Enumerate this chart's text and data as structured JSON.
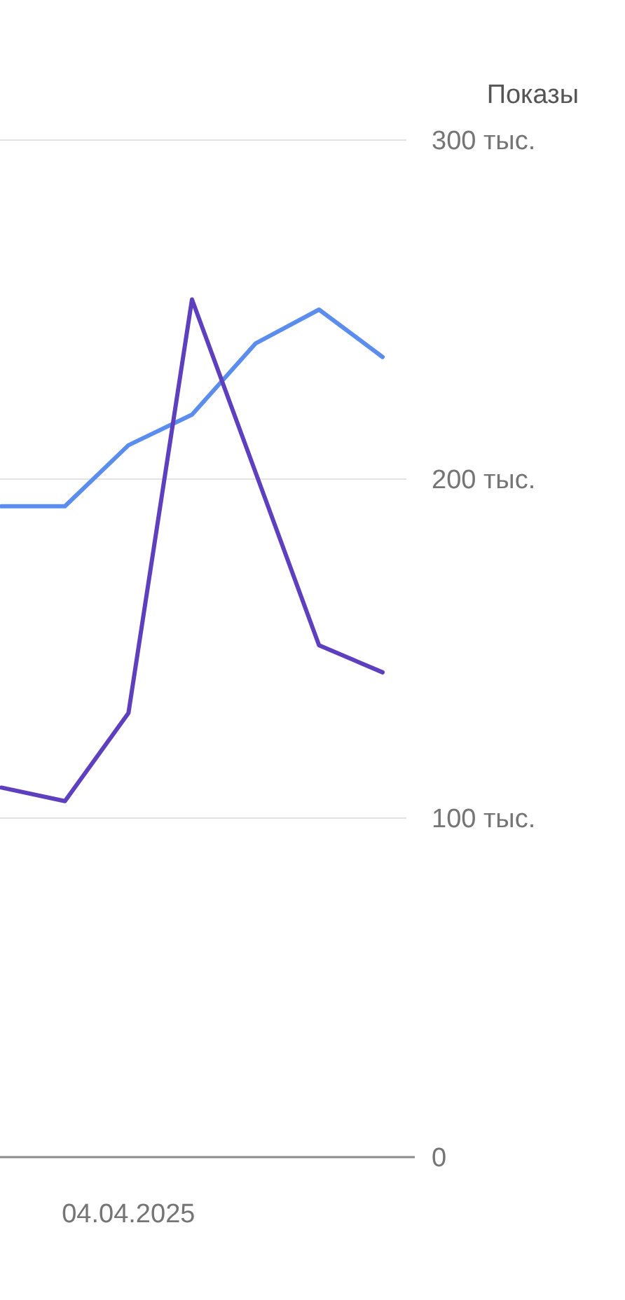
{
  "chart_data": {
    "type": "line",
    "ylabel": "Показы",
    "categories": [
      null,
      null,
      "04.04.2025",
      null,
      null,
      null,
      null
    ],
    "series": [
      {
        "color": "#5b8def",
        "values": [
          192,
          192,
          210,
          219,
          240,
          250,
          236
        ]
      },
      {
        "color": "#5e3fbe",
        "values": [
          109,
          105,
          131,
          253,
          202,
          151,
          143
        ]
      }
    ],
    "ylim": [
      0,
      300
    ],
    "yticks": [
      0,
      {
        "value": 100,
        "label": "100 тыс."
      },
      {
        "value": 200,
        "label": "200 тыс."
      },
      {
        "value": 300,
        "label": "300 тыс."
      }
    ],
    "grid": "y",
    "line_style": "solid",
    "marker": "none"
  }
}
